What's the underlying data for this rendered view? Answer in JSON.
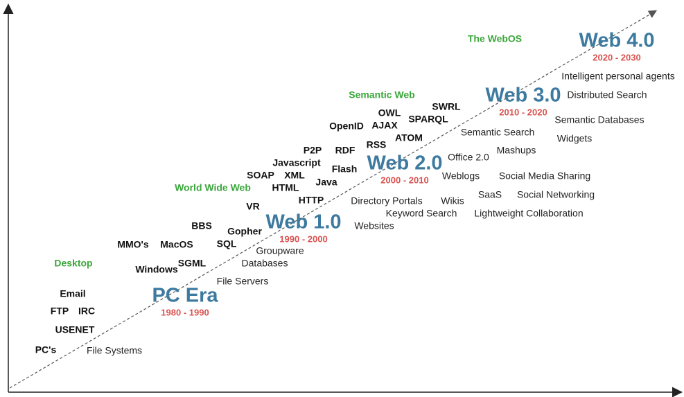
{
  "eras": [
    {
      "name": "PC Era",
      "years": "1980 - 1990"
    },
    {
      "name": "Web 1.0",
      "years": "1990 - 2000"
    },
    {
      "name": "Web 2.0",
      "years": "2000 - 2010"
    },
    {
      "name": "Web 3.0",
      "years": "2010 - 2020"
    },
    {
      "name": "Web 4.0",
      "years": "2020 - 2030"
    }
  ],
  "phases": [
    "Desktop",
    "World Wide Web",
    "Semantic Web",
    "The WebOS"
  ],
  "technologies": [
    "PC's",
    "Email",
    "FTP",
    "IRC",
    "USENET",
    "Windows",
    "SGML",
    "MMO's",
    "MacOS",
    "BBS",
    "SQL",
    "Gopher",
    "VR",
    "HTTP",
    "HTML",
    "SOAP",
    "XML",
    "Java",
    "Javascript",
    "P2P",
    "RDF",
    "Flash",
    "RSS",
    "OpenID",
    "AJAX",
    "OWL",
    "ATOM",
    "SPARQL",
    "SWRL"
  ],
  "applications": [
    "File Systems",
    "File Servers",
    "Databases",
    "Groupware",
    "Websites",
    "Directory Portals",
    "Keyword Search",
    "Wikis",
    "Lightweight Collaboration",
    "SaaS",
    "Social Networking",
    "Weblogs",
    "Social Media Sharing",
    "Office 2.0",
    "Mashups",
    "Semantic Search",
    "Widgets",
    "Semantic Databases",
    "Distributed Search",
    "Intelligent personal agents"
  ]
}
